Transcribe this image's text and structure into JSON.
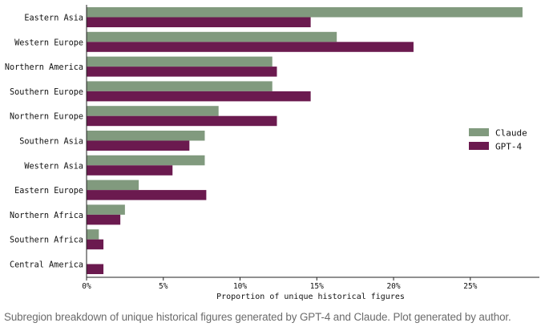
{
  "chart_data": {
    "type": "bar",
    "orientation": "horizontal",
    "categories": [
      "Eastern Asia",
      "Western Europe",
      "Northern America",
      "Southern Europe",
      "Northern Europe",
      "Southern Asia",
      "Western Asia",
      "Eastern Europe",
      "Northern Africa",
      "Southern Africa",
      "Central America"
    ],
    "series": [
      {
        "name": "Claude",
        "color": "#819a7e",
        "values": [
          28.4,
          16.3,
          12.1,
          12.1,
          8.6,
          7.7,
          7.7,
          3.4,
          2.5,
          0.8,
          0.0
        ]
      },
      {
        "name": "GPT-4",
        "color": "#6b1a4f",
        "values": [
          14.6,
          21.3,
          12.4,
          14.6,
          12.4,
          6.7,
          5.6,
          7.8,
          2.2,
          1.1,
          1.1
        ]
      }
    ],
    "xlabel": "Proportion of unique historical figures",
    "ylabel": "",
    "xlim": [
      0,
      29.5
    ],
    "xticks": [
      0,
      5,
      10,
      15,
      20,
      25
    ],
    "xtick_labels": [
      "0%",
      "5%",
      "10%",
      "15%",
      "20%",
      "25%"
    ],
    "legend_position": "center-right",
    "grid": false
  },
  "caption": "Subregion breakdown of unique historical figures generated by GPT-4 and Claude. Plot generated by author."
}
